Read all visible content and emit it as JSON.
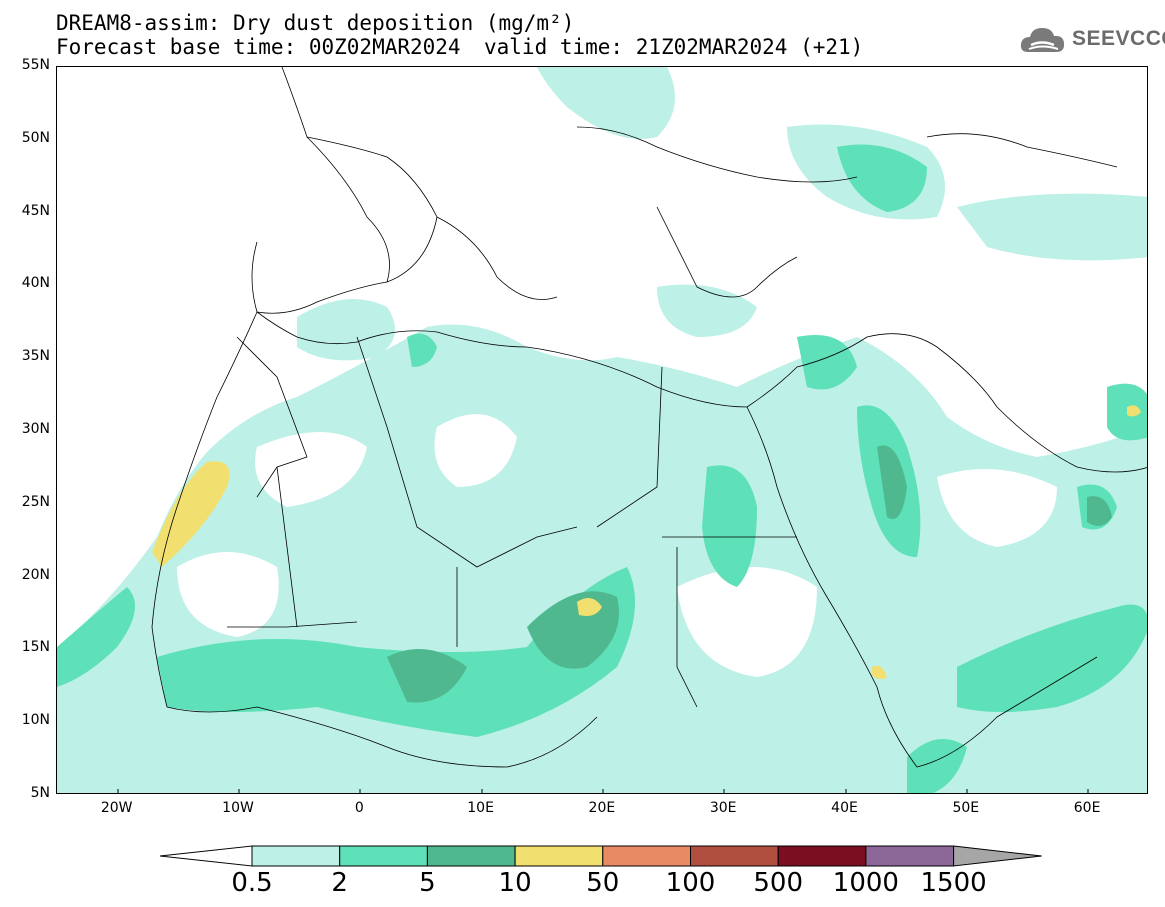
{
  "header": {
    "title_line1": "DREAM8-assim: Dry dust deposition (mg/m²)",
    "title_line2": "Forecast base time: 00Z02MAR2024",
    "valid_time": "valid time: 21Z02MAR2024 (+21)",
    "logo_text": "SEEVCCC"
  },
  "axes": {
    "lat_labels": [
      "55N",
      "50N",
      "45N",
      "40N",
      "35N",
      "30N",
      "25N",
      "20N",
      "15N",
      "10N",
      "5N"
    ],
    "lon_labels": [
      "20W",
      "10W",
      "0",
      "10E",
      "20E",
      "30E",
      "40E",
      "50E",
      "60E"
    ],
    "lon_range": [
      -25,
      65
    ],
    "lat_range": [
      5,
      55
    ]
  },
  "colorbar": {
    "labels": [
      "0.5",
      "2",
      "5",
      "10",
      "50",
      "100",
      "500",
      "1000",
      "1500"
    ],
    "colors": [
      "#bdf0e6",
      "#5ee0b8",
      "#4fb88e",
      "#f1e070",
      "#e88a64",
      "#b04e40",
      "#7a0f22",
      "#8c6898",
      "#a6a6a6"
    ]
  },
  "field_colors": {
    "light": "#bdf0e6",
    "medium": "#5ee0b8",
    "dark": "#4fb88e",
    "yellow": "#f1e070"
  }
}
